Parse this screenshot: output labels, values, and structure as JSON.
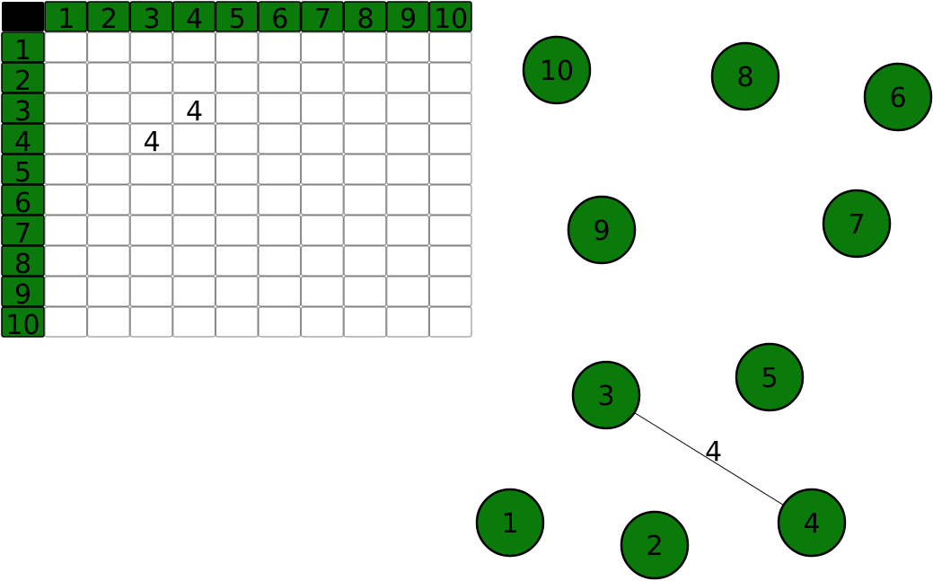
{
  "colors": {
    "header_fill": "#0a7a0a",
    "node_fill": "#0a7a0a",
    "corner_fill": "#000000",
    "grid_stroke": "#808080",
    "text": "#000000"
  },
  "matrix": {
    "column_headers": [
      "1",
      "2",
      "3",
      "4",
      "5",
      "6",
      "7",
      "8",
      "9",
      "10"
    ],
    "row_headers": [
      "1",
      "2",
      "3",
      "4",
      "5",
      "6",
      "7",
      "8",
      "9",
      "10"
    ],
    "filled_cells": [
      {
        "row": 3,
        "col": 4,
        "value": "4"
      },
      {
        "row": 4,
        "col": 3,
        "value": "4"
      }
    ]
  },
  "graph": {
    "nodes": [
      {
        "id": 1,
        "label": "1"
      },
      {
        "id": 2,
        "label": "2"
      },
      {
        "id": 3,
        "label": "3"
      },
      {
        "id": 4,
        "label": "4"
      },
      {
        "id": 5,
        "label": "5"
      },
      {
        "id": 6,
        "label": "6"
      },
      {
        "id": 7,
        "label": "7"
      },
      {
        "id": 8,
        "label": "8"
      },
      {
        "id": 9,
        "label": "9"
      },
      {
        "id": 10,
        "label": "10"
      }
    ],
    "edges": [
      {
        "from": 3,
        "to": 4,
        "weight": "4"
      }
    ]
  }
}
